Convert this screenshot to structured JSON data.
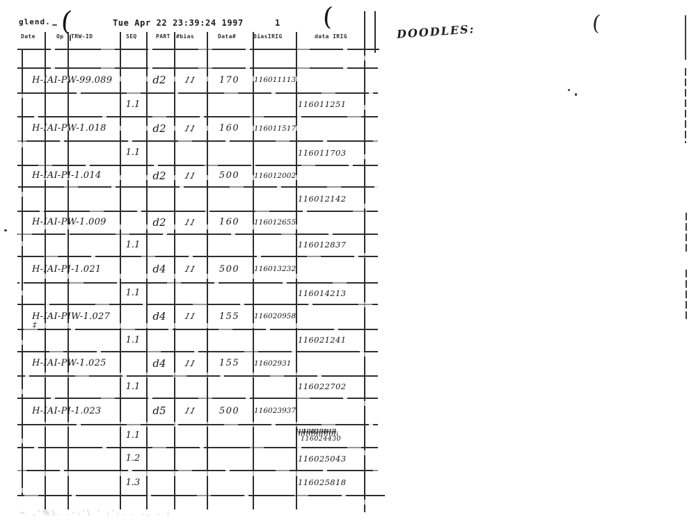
{
  "page": {
    "title_left": "glend.",
    "timestamp": "Tue Apr 22 23:39:24 1997",
    "page_number": "1",
    "doodles_label": "DOODLES:",
    "paren_marks": [
      "(",
      "(",
      "("
    ],
    "footer_smudge": "~ ,'%\\. .-:'\\ '  ;':. . ., . ;"
  },
  "table": {
    "columns": [
      "Date",
      "Op",
      "TRW-ID",
      "SEQ",
      "PART",
      "#bias",
      "Data#",
      "BiasIRIG",
      "data IRIG"
    ],
    "rows": [
      {
        "trw_id": "H-IAI-PW-99.089",
        "part": "d2",
        "num_bias": "11",
        "data_num": "170",
        "bias_irig": "116011113"
      },
      {
        "seq": "1.1",
        "data_irig": "116011251"
      },
      {
        "trw_id": "H-IAI-PW-1.018",
        "part": "d2",
        "num_bias": "11",
        "data_num": "160",
        "bias_irig": "116011517"
      },
      {
        "seq": "1.1",
        "data_irig": "116011703"
      },
      {
        "trw_id": "H-IAI-PI-1.014",
        "part": "d2",
        "num_bias": "11",
        "data_num": "500",
        "bias_irig": "116012002"
      },
      {
        "data_irig": "116012142"
      },
      {
        "trw_id": "H-IAI-PW-1.009",
        "part": "d2",
        "num_bias": "11",
        "data_num": "160",
        "bias_irig": "116012655"
      },
      {
        "seq": "1.1",
        "data_irig": "116012837"
      },
      {
        "trw_id": "H-IAI-PI-1.021",
        "part": "d4",
        "num_bias": "11",
        "data_num": "500",
        "bias_irig": "116013232"
      },
      {
        "seq": "1.1",
        "data_irig": "116014213"
      },
      {
        "trw_id": "H-IAI-PIW-1.027",
        "part": "d4",
        "num_bias": "11",
        "data_num": "155",
        "bias_irig": "116020958",
        "stray": "‡"
      },
      {
        "seq": "1.1",
        "data_irig": "116021241"
      },
      {
        "trw_id": "H-IAI-PW-1.025",
        "part": "d4",
        "num_bias": "11",
        "data_num": "155",
        "bias_irig": "11602931"
      },
      {
        "seq": "1.1",
        "data_irig": "116022702"
      },
      {
        "trw_id": "H-IAI-PI-1.023",
        "part": "d5",
        "num_bias": "11",
        "data_num": "500",
        "bias_irig": "116023937"
      },
      {
        "seq": "1.1",
        "data_irig_struck": "116025043",
        "data_irig": "116024430"
      },
      {
        "seq": "1.2",
        "data_irig": "116025043"
      },
      {
        "seq": "1.3",
        "data_irig": "116025818"
      }
    ]
  }
}
